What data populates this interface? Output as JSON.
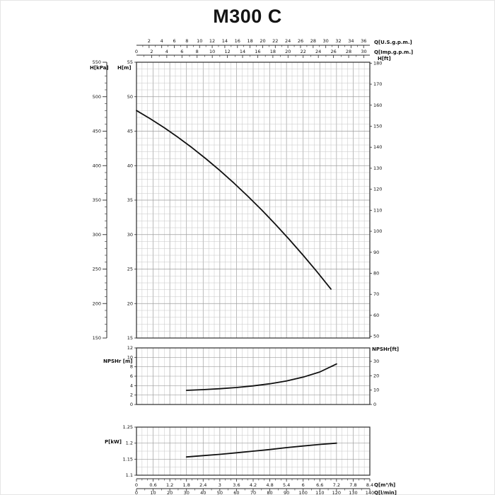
{
  "title": "M300 C",
  "colors": {
    "curve": "#101010",
    "grid_minor": "#c6c6c6",
    "grid_major": "#9e9e9e",
    "frame": "#2b2b2b",
    "text": "#111111"
  },
  "chart_data": [
    {
      "type": "line",
      "name": "head-curve",
      "xlabel_top1": "Q[U.S.g.p.m.]",
      "xlabel_top2": "Q[Imp.g.p.m.]",
      "ylabel_left1": "H[kPa]",
      "ylabel_left2": "H[m]",
      "ylabel_right": "H[ft]",
      "x_range_m3h": [
        0,
        8.4
      ],
      "y_range_m": [
        15,
        55
      ],
      "x_m3h": [
        0,
        0.5,
        1,
        1.5,
        2,
        2.5,
        3,
        3.5,
        4,
        4.5,
        5,
        5.5,
        6,
        6.5,
        7
      ],
      "h_m": [
        48,
        46.8,
        45.5,
        44.1,
        42.6,
        41,
        39.3,
        37.5,
        35.6,
        33.6,
        31.5,
        29.3,
        27,
        24.6,
        22.1
      ],
      "kpa_ticks": [
        550,
        500,
        450,
        400,
        350,
        300,
        250,
        200,
        150
      ],
      "m_ticks": [
        55,
        50,
        45,
        40,
        35,
        30,
        25,
        20,
        15
      ],
      "ft_ticks": [
        180,
        170,
        160,
        150,
        140,
        130,
        120,
        110,
        100,
        90,
        80,
        70,
        60,
        50
      ],
      "usgpm_ticks": [
        2,
        4,
        6,
        8,
        10,
        12,
        14,
        16,
        18,
        20,
        22,
        24,
        26,
        28,
        30,
        32,
        34,
        36
      ],
      "impgpm_ticks": [
        0,
        2,
        4,
        6,
        8,
        10,
        12,
        14,
        16,
        18,
        20,
        22,
        24,
        26,
        28,
        30
      ]
    },
    {
      "type": "line",
      "name": "npsh-curve",
      "ylabel_left": "NPSHr [m]",
      "ylabel_right": "NPSHr[ft]",
      "y_range_m": [
        0,
        12
      ],
      "x_m3h": [
        1.8,
        2.4,
        3,
        3.6,
        4.2,
        4.8,
        5.4,
        6,
        6.6,
        7.2
      ],
      "npsh_m": [
        3,
        3.15,
        3.35,
        3.6,
        3.95,
        4.4,
        5,
        5.8,
        6.9,
        8.6
      ],
      "m_ticks": [
        12,
        10,
        8,
        6,
        4,
        2,
        0
      ],
      "ft_ticks": [
        30,
        20,
        10,
        0
      ]
    },
    {
      "type": "line",
      "name": "power-curve",
      "ylabel_left": "P[kW]",
      "y_range_kw": [
        1.1,
        1.25
      ],
      "x_m3h": [
        1.8,
        2.4,
        3,
        3.6,
        4.2,
        4.8,
        5.4,
        6,
        6.6,
        7.2
      ],
      "p_kw": [
        1.157,
        1.161,
        1.165,
        1.17,
        1.175,
        1.18,
        1.186,
        1.191,
        1.196,
        1.2
      ],
      "kw_ticks": [
        1.25,
        1.2,
        1.15,
        1.1
      ]
    }
  ],
  "bottom_axis": {
    "label_m3h": "Q[m³/h]",
    "label_lmin": "Q[l/min]",
    "m3h_ticks": [
      0,
      0.6,
      1.2,
      1.8,
      2.4,
      3,
      3.6,
      4.2,
      4.8,
      5.4,
      6,
      6.6,
      7.2,
      7.8,
      8.4
    ],
    "lmin_ticks": [
      0,
      10,
      20,
      30,
      40,
      50,
      60,
      70,
      80,
      90,
      100,
      110,
      120,
      130,
      140
    ]
  }
}
